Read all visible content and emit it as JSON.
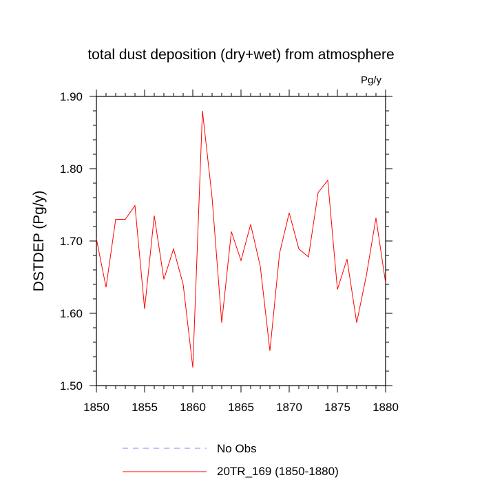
{
  "chart_data": {
    "type": "line",
    "title": "total dust deposition (dry+wet) from atmosphere",
    "units": "Pg/y",
    "xlabel": "",
    "ylabel": "DSTDEP  (Pg/y)",
    "xlim": [
      1850,
      1880
    ],
    "ylim": [
      1.5,
      1.9
    ],
    "xticks": [
      "1850",
      "1855",
      "1860",
      "1865",
      "1870",
      "1875",
      "1880"
    ],
    "yticks": [
      "1.50",
      "1.60",
      "1.70",
      "1.80",
      "1.90"
    ],
    "series": [
      {
        "name": "No Obs",
        "color": "#8080ff",
        "dash": "dashed",
        "x": [],
        "values": []
      },
      {
        "name": "20TR_169 (1850-1880)",
        "color": "#ff0000",
        "dash": "solid",
        "x": [
          1850,
          1851,
          1852,
          1853,
          1854,
          1855,
          1856,
          1857,
          1858,
          1859,
          1860,
          1861,
          1862,
          1863,
          1864,
          1865,
          1866,
          1867,
          1868,
          1869,
          1870,
          1871,
          1872,
          1873,
          1874,
          1875,
          1876,
          1877,
          1878,
          1879,
          1880
        ],
        "values": [
          1.703,
          1.636,
          1.73,
          1.73,
          1.749,
          1.606,
          1.735,
          1.647,
          1.689,
          1.64,
          1.525,
          1.88,
          1.76,
          1.587,
          1.713,
          1.673,
          1.723,
          1.665,
          1.548,
          1.683,
          1.739,
          1.689,
          1.678,
          1.767,
          1.784,
          1.633,
          1.675,
          1.587,
          1.652,
          1.732,
          1.642
        ]
      }
    ]
  }
}
